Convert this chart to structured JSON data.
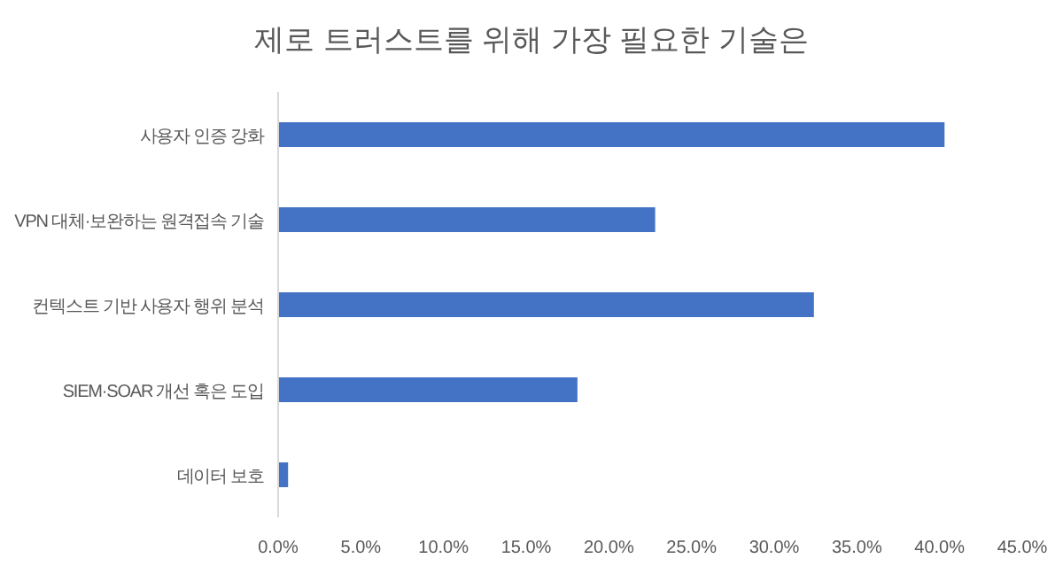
{
  "chart_data": {
    "type": "bar",
    "orientation": "horizontal",
    "title": "제로 트러스트를 위해 가장 필요한 기술은",
    "categories": [
      "사용자 인증 강화",
      "VPN 대체·보완하는 원격접속 기술",
      "컨텍스트 기반 사용자 행위 분석",
      "SIEM·SOAR 개선 혹은 도입",
      "데이터 보호"
    ],
    "values": [
      40.3,
      22.8,
      32.4,
      18.1,
      0.6
    ],
    "color": "#4472c4",
    "xlim": [
      0,
      45
    ],
    "xticks": [
      {
        "value": 0,
        "label": "0.0%"
      },
      {
        "value": 5,
        "label": "5.0%"
      },
      {
        "value": 10,
        "label": "10.0%"
      },
      {
        "value": 15,
        "label": "15.0%"
      },
      {
        "value": 20,
        "label": "20.0%"
      },
      {
        "value": 25,
        "label": "25.0%"
      },
      {
        "value": 30,
        "label": "30.0%"
      },
      {
        "value": 35,
        "label": "35.0%"
      },
      {
        "value": 40,
        "label": "40.0%"
      },
      {
        "value": 45,
        "label": "45.0%"
      }
    ],
    "grid": false
  }
}
